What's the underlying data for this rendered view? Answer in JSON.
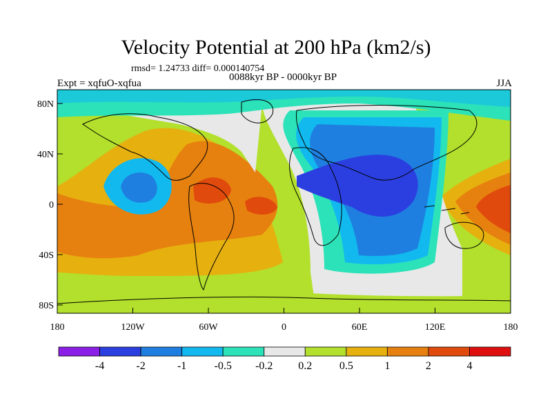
{
  "title": "Velocity Potential at 200 hPa (km2/s)",
  "stats": "rmsd= 1.24733 diff= 0.000140754",
  "subtitle": "0088kyr BP - 0000kyr BP",
  "experiment": "Expt = xqfuO-xqfua",
  "season": "JJA",
  "lon_ticks": [
    "180",
    "120W",
    "60W",
    "0",
    "60E",
    "120E",
    "180"
  ],
  "lat_ticks": [
    "80N",
    "40N",
    "0",
    "40S",
    "80S"
  ],
  "colorbar": {
    "labels": [
      "-4",
      "-2",
      "-1",
      "-0.5",
      "-0.2",
      "0.2",
      "0.5",
      "1",
      "2",
      "4"
    ],
    "colors": [
      "#8c1fe6",
      "#2b3fe0",
      "#1f7fe0",
      "#12b9ee",
      "#2ce2b8",
      "#e8e8e8",
      "#b2e02c",
      "#e6b00f",
      "#e6800f",
      "#e04a0c",
      "#e00f0f"
    ]
  }
}
